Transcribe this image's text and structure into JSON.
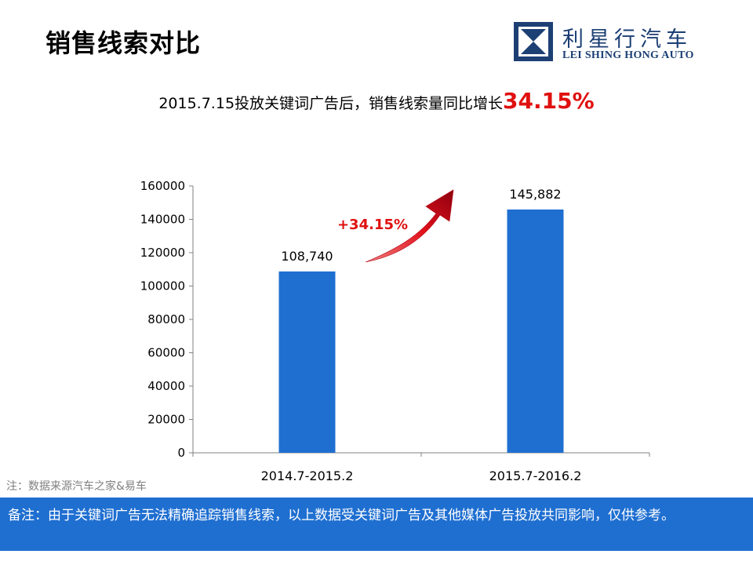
{
  "page_title": "销售线索对比",
  "logo": {
    "name_cn": "利星行汽车",
    "name_en": "LEI SHING HONG AUTO",
    "brand_color": "#1c3f74"
  },
  "headline": {
    "text": "2015.7.15投放关键词广告后，销售线索量同比增长",
    "highlight": "34.15%",
    "highlight_color": "#e01010"
  },
  "chart_data": {
    "type": "bar",
    "categories": [
      "2014.7-2015.2",
      "2015.7-2016.2"
    ],
    "values": [
      108740,
      145882
    ],
    "data_labels": [
      "108,740",
      "145,882"
    ],
    "y_ticks": [
      0,
      20000,
      40000,
      60000,
      80000,
      100000,
      120000,
      140000,
      160000
    ],
    "ylim": [
      0,
      160000
    ],
    "bar_color": "#1f6fd1",
    "grid": false,
    "annotation": "+34.15%",
    "annotation_color": "#e01010"
  },
  "source_note": "注：数据来源汽车之家&易车",
  "footnote": "备注：由于关键词广告无法精确追踪销售线索，以上数据受关键词广告及其他媒体广告投放共同影响，仅供参考。"
}
